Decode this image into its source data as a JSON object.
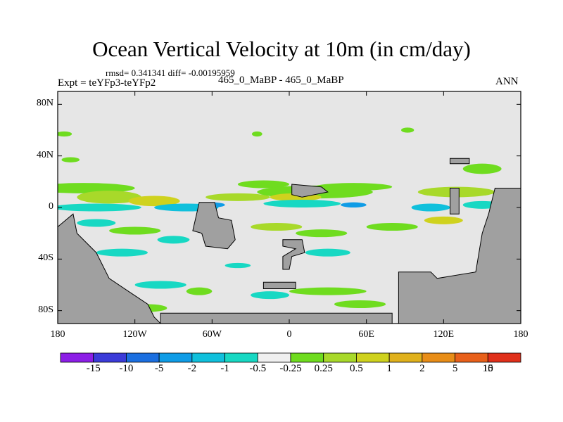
{
  "chart_data": {
    "type": "heatmap",
    "title": "Ocean Vertical Velocity at 10m (in cm/day)",
    "stats_text": "rmsd= 0.341341 diff= -0.00195959",
    "left_subtitle": "Expt = teYFp3-teYFp2",
    "center_subtitle": "465_0_MaBP - 465_0_MaBP",
    "right_subtitle": "ANN",
    "x_range": [
      -180,
      180
    ],
    "y_range": [
      -90,
      90
    ],
    "x_ticks": [
      {
        "value": -180,
        "label": "180"
      },
      {
        "value": -120,
        "label": "120W"
      },
      {
        "value": -60,
        "label": "60W"
      },
      {
        "value": 0,
        "label": "0"
      },
      {
        "value": 60,
        "label": "60E"
      },
      {
        "value": 120,
        "label": "120E"
      },
      {
        "value": 180,
        "label": "180"
      }
    ],
    "y_ticks": [
      {
        "value": 80,
        "label": "80N"
      },
      {
        "value": 40,
        "label": "40N"
      },
      {
        "value": 0,
        "label": "0"
      },
      {
        "value": -40,
        "label": "40S"
      },
      {
        "value": -80,
        "label": "80S"
      }
    ],
    "colorbar": {
      "labels": [
        "-15",
        "-10",
        "-5",
        "-2",
        "-1",
        "-0.5",
        "-0.25",
        "0.25",
        "0.5",
        "1",
        "2",
        "5",
        "10",
        "15"
      ],
      "colors": [
        "#8c1ee6",
        "#3b3bd8",
        "#1b6fe0",
        "#0f9ce6",
        "#10c0dc",
        "#17d8c3",
        "#f0f0f0",
        "#6fdc1f",
        "#a8d92a",
        "#cfd21e",
        "#e0b11c",
        "#e88d17",
        "#e8601a",
        "#e0301a"
      ]
    },
    "land_color": "#a0a0a0",
    "ocean_background": "#e6e6e6",
    "anomaly_bands": [
      {
        "lon": -175,
        "lat": 57,
        "len": 12,
        "th": 2,
        "level": "0.25"
      },
      {
        "lon": -25,
        "lat": 57,
        "len": 8,
        "th": 2,
        "level": "0.25"
      },
      {
        "lon": 92,
        "lat": 60,
        "len": 10,
        "th": 2,
        "level": "0.25"
      },
      {
        "lon": -170,
        "lat": 37,
        "len": 14,
        "th": 2,
        "level": "0.25"
      },
      {
        "lon": -160,
        "lat": 15,
        "len": 80,
        "th": 4,
        "level": "0.25"
      },
      {
        "lon": -20,
        "lat": 18,
        "len": 40,
        "th": 3,
        "level": "0.25"
      },
      {
        "lon": 50,
        "lat": 16,
        "len": 60,
        "th": 3,
        "level": "0.25"
      },
      {
        "lon": 150,
        "lat": 30,
        "len": 30,
        "th": 4,
        "level": "0.25"
      },
      {
        "lon": -140,
        "lat": 8,
        "len": 50,
        "th": 5,
        "level": "0.5"
      },
      {
        "lon": -105,
        "lat": 5,
        "len": 40,
        "th": 4,
        "level": "1"
      },
      {
        "lon": -40,
        "lat": 8,
        "len": 50,
        "th": 3,
        "level": "0.5"
      },
      {
        "lon": 20,
        "lat": 12,
        "len": 90,
        "th": 5,
        "level": "0.25"
      },
      {
        "lon": 5,
        "lat": 8,
        "len": 40,
        "th": 3,
        "level": "1"
      },
      {
        "lon": 130,
        "lat": 12,
        "len": 60,
        "th": 4,
        "level": "0.5"
      },
      {
        "lon": -150,
        "lat": 0,
        "len": 70,
        "th": 3,
        "level": "-0.5"
      },
      {
        "lon": -80,
        "lat": 0,
        "len": 50,
        "th": 3,
        "level": "-1"
      },
      {
        "lon": -60,
        "lat": 2,
        "len": 20,
        "th": 2,
        "level": "-2"
      },
      {
        "lon": 10,
        "lat": 3,
        "len": 60,
        "th": 3,
        "level": "-0.5"
      },
      {
        "lon": 50,
        "lat": 2,
        "len": 20,
        "th": 2,
        "level": "-2"
      },
      {
        "lon": 110,
        "lat": 0,
        "len": 30,
        "th": 3,
        "level": "-1"
      },
      {
        "lon": 150,
        "lat": 2,
        "len": 30,
        "th": 3,
        "level": "-0.5"
      },
      {
        "lon": -150,
        "lat": -12,
        "len": 30,
        "th": 3,
        "level": "-0.5"
      },
      {
        "lon": -120,
        "lat": -18,
        "len": 40,
        "th": 3,
        "level": "0.25"
      },
      {
        "lon": -90,
        "lat": -25,
        "len": 25,
        "th": 3,
        "level": "-0.5"
      },
      {
        "lon": -10,
        "lat": -15,
        "len": 40,
        "th": 3,
        "level": "0.5"
      },
      {
        "lon": 25,
        "lat": -20,
        "len": 40,
        "th": 3,
        "level": "0.25"
      },
      {
        "lon": 80,
        "lat": -15,
        "len": 40,
        "th": 3,
        "level": "0.25"
      },
      {
        "lon": 120,
        "lat": -10,
        "len": 30,
        "th": 3,
        "level": "1"
      },
      {
        "lon": -130,
        "lat": -35,
        "len": 40,
        "th": 3,
        "level": "-0.5"
      },
      {
        "lon": 30,
        "lat": -35,
        "len": 35,
        "th": 3,
        "level": "-0.5"
      },
      {
        "lon": -40,
        "lat": -45,
        "len": 20,
        "th": 2,
        "level": "-0.5"
      },
      {
        "lon": -100,
        "lat": -60,
        "len": 40,
        "th": 3,
        "level": "-0.5"
      },
      {
        "lon": -70,
        "lat": -65,
        "len": 20,
        "th": 3,
        "level": "0.25"
      },
      {
        "lon": 30,
        "lat": -65,
        "len": 60,
        "th": 3,
        "level": "0.25"
      },
      {
        "lon": -15,
        "lat": -68,
        "len": 30,
        "th": 3,
        "level": "-0.5"
      },
      {
        "lon": 55,
        "lat": -75,
        "len": 40,
        "th": 3,
        "level": "0.25"
      },
      {
        "lon": -110,
        "lat": -78,
        "len": 30,
        "th": 3,
        "level": "0.25"
      }
    ],
    "landmasses": [
      {
        "name": "west-continent",
        "points": [
          [
            -180,
            -90
          ],
          [
            -180,
            -15
          ],
          [
            -168,
            -5
          ],
          [
            -165,
            -20
          ],
          [
            -150,
            -35
          ],
          [
            -140,
            -55
          ],
          [
            -125,
            -65
          ],
          [
            -110,
            -75
          ],
          [
            -105,
            -85
          ],
          [
            -100,
            -90
          ]
        ]
      },
      {
        "name": "antarctic-strip",
        "points": [
          [
            -100,
            -90
          ],
          [
            -100,
            -82
          ],
          [
            80,
            -82
          ],
          [
            80,
            -90
          ]
        ]
      },
      {
        "name": "central-island-a",
        "points": [
          [
            -70,
            4
          ],
          [
            -58,
            4
          ],
          [
            -55,
            -8
          ],
          [
            -45,
            -10
          ],
          [
            -42,
            -25
          ],
          [
            -48,
            -32
          ],
          [
            -65,
            -30
          ],
          [
            -68,
            -20
          ],
          [
            -75,
            -18
          ],
          [
            -72,
            -5
          ]
        ]
      },
      {
        "name": "central-island-b",
        "points": [
          [
            -5,
            -25
          ],
          [
            10,
            -25
          ],
          [
            12,
            -35
          ],
          [
            2,
            -38
          ],
          [
            0,
            -48
          ],
          [
            -5,
            -48
          ],
          [
            -5,
            -38
          ],
          [
            5,
            -32
          ],
          [
            -5,
            -30
          ]
        ]
      },
      {
        "name": "southern-strip",
        "points": [
          [
            -20,
            -58
          ],
          [
            5,
            -58
          ],
          [
            5,
            -63
          ],
          [
            -20,
            -63
          ]
        ]
      },
      {
        "name": "north-island",
        "points": [
          [
            2,
            18
          ],
          [
            25,
            16
          ],
          [
            30,
            12
          ],
          [
            10,
            8
          ],
          [
            2,
            10
          ]
        ]
      },
      {
        "name": "east-small-island",
        "points": [
          [
            125,
            15
          ],
          [
            132,
            15
          ],
          [
            132,
            -5
          ],
          [
            125,
            -5
          ]
        ]
      },
      {
        "name": "northeast-island",
        "points": [
          [
            125,
            38
          ],
          [
            140,
            38
          ],
          [
            140,
            34
          ],
          [
            125,
            34
          ]
        ]
      },
      {
        "name": "east-continent",
        "points": [
          [
            85,
            -90
          ],
          [
            85,
            -50
          ],
          [
            110,
            -50
          ],
          [
            115,
            -55
          ],
          [
            145,
            -50
          ],
          [
            150,
            -20
          ],
          [
            155,
            -5
          ],
          [
            160,
            15
          ],
          [
            180,
            15
          ],
          [
            180,
            -90
          ]
        ]
      }
    ]
  }
}
